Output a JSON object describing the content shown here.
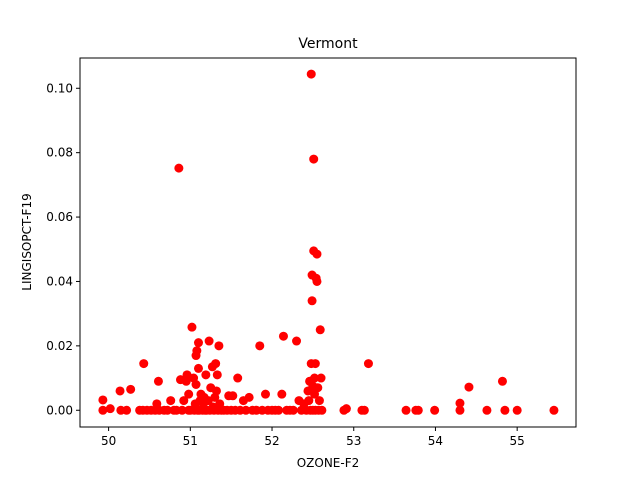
{
  "chart_data": {
    "type": "scatter",
    "title": "Vermont",
    "xlabel": "OZONE-F2",
    "ylabel": "LINGISOPCT-F19",
    "xlim": [
      49.65,
      55.72
    ],
    "ylim": [
      -0.0052,
      0.1094
    ],
    "xticks": [
      50,
      51,
      52,
      53,
      54,
      55
    ],
    "yticks": [
      0.0,
      0.02,
      0.04,
      0.06,
      0.08,
      0.1
    ],
    "ytick_labels": [
      "0.00",
      "0.02",
      "0.04",
      "0.06",
      "0.08",
      "0.10"
    ],
    "grid": false,
    "marker_color": "#ff0000",
    "points": [
      [
        49.93,
        0.0032
      ],
      [
        49.93,
        0.0
      ],
      [
        50.02,
        0.0005
      ],
      [
        50.14,
        0.006
      ],
      [
        50.15,
        0.0
      ],
      [
        50.22,
        0.0
      ],
      [
        50.27,
        0.0065
      ],
      [
        50.38,
        0.0
      ],
      [
        50.42,
        0.0
      ],
      [
        50.43,
        0.0145
      ],
      [
        50.47,
        0.0
      ],
      [
        50.52,
        0.0
      ],
      [
        50.57,
        0.0
      ],
      [
        50.59,
        0.002
      ],
      [
        50.61,
        0.009
      ],
      [
        50.62,
        0.0
      ],
      [
        50.68,
        0.0
      ],
      [
        50.72,
        0.0
      ],
      [
        50.76,
        0.003
      ],
      [
        50.8,
        0.0
      ],
      [
        50.83,
        0.0
      ],
      [
        50.86,
        0.0752
      ],
      [
        50.88,
        0.0095
      ],
      [
        50.9,
        0.0
      ],
      [
        50.92,
        0.003
      ],
      [
        50.95,
        0.009
      ],
      [
        50.96,
        0.011
      ],
      [
        50.98,
        0.005
      ],
      [
        50.98,
        0.0
      ],
      [
        51.0,
        0.0
      ],
      [
        51.02,
        0.0258
      ],
      [
        51.04,
        0.01
      ],
      [
        51.05,
        0.0
      ],
      [
        51.06,
        0.002
      ],
      [
        51.07,
        0.008
      ],
      [
        51.07,
        0.017
      ],
      [
        51.08,
        0.0185
      ],
      [
        51.09,
        0.0
      ],
      [
        51.1,
        0.021
      ],
      [
        51.1,
        0.013
      ],
      [
        51.11,
        0.0
      ],
      [
        51.12,
        0.003
      ],
      [
        51.13,
        0.005
      ],
      [
        51.15,
        0.0
      ],
      [
        51.16,
        0.002
      ],
      [
        51.17,
        0.004
      ],
      [
        51.18,
        0.0
      ],
      [
        51.19,
        0.011
      ],
      [
        51.2,
        0.0
      ],
      [
        51.22,
        0.003
      ],
      [
        51.23,
        0.0215
      ],
      [
        51.24,
        0.0
      ],
      [
        51.25,
        0.007
      ],
      [
        51.27,
        0.0135
      ],
      [
        51.28,
        0.001
      ],
      [
        51.29,
        0.0
      ],
      [
        51.3,
        0.004
      ],
      [
        51.31,
        0.0145
      ],
      [
        51.32,
        0.006
      ],
      [
        51.33,
        0.011
      ],
      [
        51.34,
        0.0
      ],
      [
        51.35,
        0.02
      ],
      [
        51.36,
        0.002
      ],
      [
        51.38,
        0.0
      ],
      [
        51.41,
        0.0
      ],
      [
        51.45,
        0.0
      ],
      [
        51.47,
        0.0045
      ],
      [
        51.5,
        0.0
      ],
      [
        51.52,
        0.0045
      ],
      [
        51.55,
        0.0
      ],
      [
        51.58,
        0.01
      ],
      [
        51.61,
        0.0
      ],
      [
        51.65,
        0.003
      ],
      [
        51.68,
        0.0
      ],
      [
        51.72,
        0.004
      ],
      [
        51.76,
        0.0
      ],
      [
        51.81,
        0.0
      ],
      [
        51.85,
        0.02
      ],
      [
        51.88,
        0.0
      ],
      [
        51.92,
        0.005
      ],
      [
        51.95,
        0.0
      ],
      [
        52.0,
        0.0
      ],
      [
        52.04,
        0.0
      ],
      [
        52.08,
        0.0
      ],
      [
        52.12,
        0.005
      ],
      [
        52.14,
        0.023
      ],
      [
        52.18,
        0.0
      ],
      [
        52.22,
        0.0
      ],
      [
        52.26,
        0.0
      ],
      [
        52.3,
        0.0215
      ],
      [
        52.33,
        0.003
      ],
      [
        52.36,
        0.0
      ],
      [
        52.39,
        0.002
      ],
      [
        52.42,
        0.0
      ],
      [
        52.44,
        0.006
      ],
      [
        52.45,
        0.003
      ],
      [
        52.46,
        0.009
      ],
      [
        52.47,
        0.0
      ],
      [
        52.48,
        0.1044
      ],
      [
        52.48,
        0.0145
      ],
      [
        52.49,
        0.042
      ],
      [
        52.49,
        0.034
      ],
      [
        52.5,
        0.0075
      ],
      [
        52.5,
        0.0
      ],
      [
        52.51,
        0.078
      ],
      [
        52.51,
        0.0495
      ],
      [
        52.52,
        0.01
      ],
      [
        52.52,
        0.005
      ],
      [
        52.53,
        0.0
      ],
      [
        52.53,
        0.0145
      ],
      [
        52.54,
        0.041
      ],
      [
        52.55,
        0.0485
      ],
      [
        52.55,
        0.04
      ],
      [
        52.56,
        0.007
      ],
      [
        52.57,
        0.0
      ],
      [
        52.58,
        0.003
      ],
      [
        52.59,
        0.025
      ],
      [
        52.6,
        0.01
      ],
      [
        52.61,
        0.0
      ],
      [
        52.88,
        0.0
      ],
      [
        52.91,
        0.0005
      ],
      [
        53.1,
        0.0
      ],
      [
        53.13,
        0.0
      ],
      [
        53.18,
        0.0145
      ],
      [
        53.64,
        0.0
      ],
      [
        53.76,
        0.0
      ],
      [
        53.79,
        0.0
      ],
      [
        53.99,
        0.0
      ],
      [
        54.3,
        0.0022
      ],
      [
        54.3,
        0.0
      ],
      [
        54.41,
        0.0072
      ],
      [
        54.63,
        0.0
      ],
      [
        54.82,
        0.009
      ],
      [
        54.85,
        0.0
      ],
      [
        55.0,
        0.0
      ],
      [
        55.45,
        0.0
      ]
    ]
  }
}
